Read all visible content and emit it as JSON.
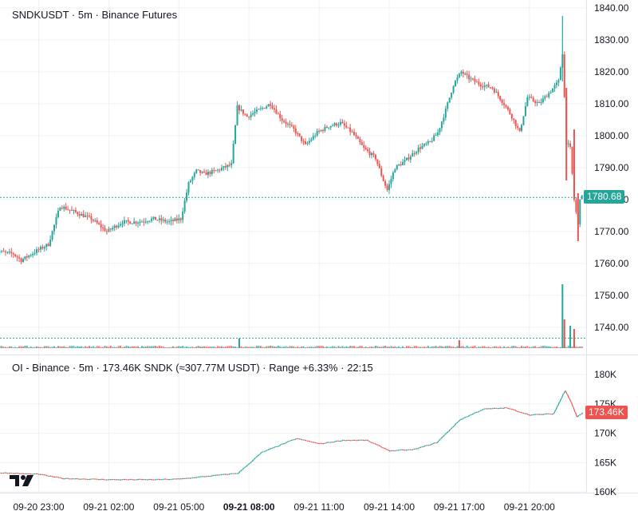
{
  "main_pane": {
    "legend": {
      "symbol": "SNDKUSDT",
      "interval": "5m",
      "exchange": "Binance Futures"
    },
    "last_price": "1780.68",
    "y_ticks": [
      "1840.00",
      "1830.00",
      "1820.00",
      "1810.00",
      "1800.00",
      "1790.00",
      "1780.00",
      "1770.00",
      "1760.00",
      "1750.00",
      "1740.00"
    ],
    "last_price_value": 1780.68
  },
  "oi_pane": {
    "legend": {
      "name": "OI - Binance",
      "interval": "5m",
      "value": "173.46K SNDK (≈307.77M USDT)",
      "range": "Range +6.33%",
      "time": "22:15"
    },
    "last_value": "173.46K",
    "y_ticks": [
      "180K",
      "175K",
      "170K",
      "165K",
      "160K"
    ]
  },
  "x_axis": {
    "ticks": [
      "09-20 23:00",
      "09-21 02:00",
      "09-21 05:00",
      "09-21 08:00",
      "09-21 11:00",
      "09-21 14:00",
      "09-21 17:00",
      "09-21 20:00"
    ],
    "bold_tick": "09-21 08:00"
  },
  "colors": {
    "up": "#26a69a",
    "down": "#ef5350",
    "grid": "#eef0f3",
    "last_price_line": "#26a69a",
    "oi_badge": "#ef5350",
    "axis_text": "#131722"
  },
  "chart_data": [
    {
      "type": "candlestick",
      "title": "SNDKUSDT · 5m · Binance Futures",
      "x_range": [
        "09-20 21:05",
        "09-21 22:15"
      ],
      "ylim": [
        1735,
        1840
      ],
      "price_path": [
        [
          "09-20 21:05",
          1764
        ],
        [
          "09-20 22:00",
          1763
        ],
        [
          "09-20 22:20",
          1761
        ],
        [
          "09-20 23:00",
          1764
        ],
        [
          "09-20 23:30",
          1766
        ],
        [
          "09-21 00:00",
          1778
        ],
        [
          "09-21 00:40",
          1776
        ],
        [
          "09-21 01:20",
          1774
        ],
        [
          "09-21 02:00",
          1770
        ],
        [
          "09-21 02:40",
          1773
        ],
        [
          "09-21 03:20",
          1773
        ],
        [
          "09-21 04:00",
          1774
        ],
        [
          "09-21 04:40",
          1773
        ],
        [
          "09-21 05:10",
          1774
        ],
        [
          "09-21 05:30",
          1785
        ],
        [
          "09-21 05:50",
          1789
        ],
        [
          "09-21 06:10",
          1788
        ],
        [
          "09-21 06:40",
          1789
        ],
        [
          "09-21 07:00",
          1790
        ],
        [
          "09-21 07:20",
          1791
        ],
        [
          "09-21 07:35",
          1809
        ],
        [
          "09-21 08:00",
          1806
        ],
        [
          "09-21 08:30",
          1808
        ],
        [
          "09-21 09:00",
          1810
        ],
        [
          "09-21 09:30",
          1805
        ],
        [
          "09-21 10:00",
          1802
        ],
        [
          "09-21 10:30",
          1797
        ],
        [
          "09-21 11:00",
          1801
        ],
        [
          "09-21 11:30",
          1803
        ],
        [
          "09-21 12:00",
          1804
        ],
        [
          "09-21 12:30",
          1801
        ],
        [
          "09-21 13:00",
          1796
        ],
        [
          "09-21 13:30",
          1793
        ],
        [
          "09-21 13:50",
          1786
        ],
        [
          "09-21 14:00",
          1783
        ],
        [
          "09-21 14:20",
          1790
        ],
        [
          "09-21 14:45",
          1792
        ],
        [
          "09-21 15:20",
          1796
        ],
        [
          "09-21 15:50",
          1798
        ],
        [
          "09-21 16:10",
          1801
        ],
        [
          "09-21 16:30",
          1808
        ],
        [
          "09-21 16:50",
          1816
        ],
        [
          "09-21 17:10",
          1820
        ],
        [
          "09-21 17:30",
          1818
        ],
        [
          "09-21 18:00",
          1816
        ],
        [
          "09-21 18:30",
          1815
        ],
        [
          "09-21 19:00",
          1810
        ],
        [
          "09-21 19:20",
          1806
        ],
        [
          "09-21 19:40",
          1801
        ],
        [
          "09-21 20:00",
          1812
        ],
        [
          "09-21 20:30",
          1810
        ],
        [
          "09-21 21:00",
          1814
        ],
        [
          "09-21 21:20",
          1817
        ],
        [
          "09-21 21:30",
          1826
        ],
        [
          "09-21 21:40",
          1798
        ],
        [
          "09-21 21:50",
          1796
        ],
        [
          "09-21 22:00",
          1780
        ],
        [
          "09-21 22:10",
          1772
        ],
        [
          "09-21 22:15",
          1780.68
        ]
      ],
      "high": 1837.5,
      "low": 1759,
      "last": 1780.68
    },
    {
      "type": "bar",
      "title": "Volume",
      "spikes": [
        [
          "09-21 07:35",
          3
        ],
        [
          "09-21 17:00",
          2.5
        ],
        [
          "09-21 21:25",
          20
        ],
        [
          "09-21 21:30",
          9
        ],
        [
          "09-21 21:45",
          7
        ],
        [
          "09-21 21:55",
          6
        ]
      ]
    },
    {
      "type": "line",
      "title": "OI - Binance · 5m",
      "ylim": [
        159,
        181
      ],
      "x": [
        "09-20 21:05",
        "09-20 23:00",
        "09-21 00:00",
        "09-21 02:00",
        "09-21 04:00",
        "09-21 05:00",
        "09-21 06:00",
        "09-21 07:30",
        "09-21 08:30",
        "09-21 09:30",
        "09-21 10:00",
        "09-21 11:00",
        "09-21 12:00",
        "09-21 13:00",
        "09-21 14:00",
        "09-21 15:00",
        "09-21 16:00",
        "09-21 17:00",
        "09-21 18:00",
        "09-21 19:00",
        "09-21 20:00",
        "09-21 21:00",
        "09-21 21:30",
        "09-21 21:45",
        "09-21 22:00",
        "09-21 22:15"
      ],
      "y": [
        163.3,
        163.0,
        162.3,
        162.1,
        162.1,
        162.2,
        162.6,
        163.2,
        166.7,
        168.3,
        169.1,
        168.2,
        168.8,
        168.8,
        167.0,
        167.2,
        168.4,
        172.3,
        174.1,
        174.3,
        173.1,
        173.3,
        177.3,
        175.3,
        172.8,
        173.46
      ]
    }
  ]
}
